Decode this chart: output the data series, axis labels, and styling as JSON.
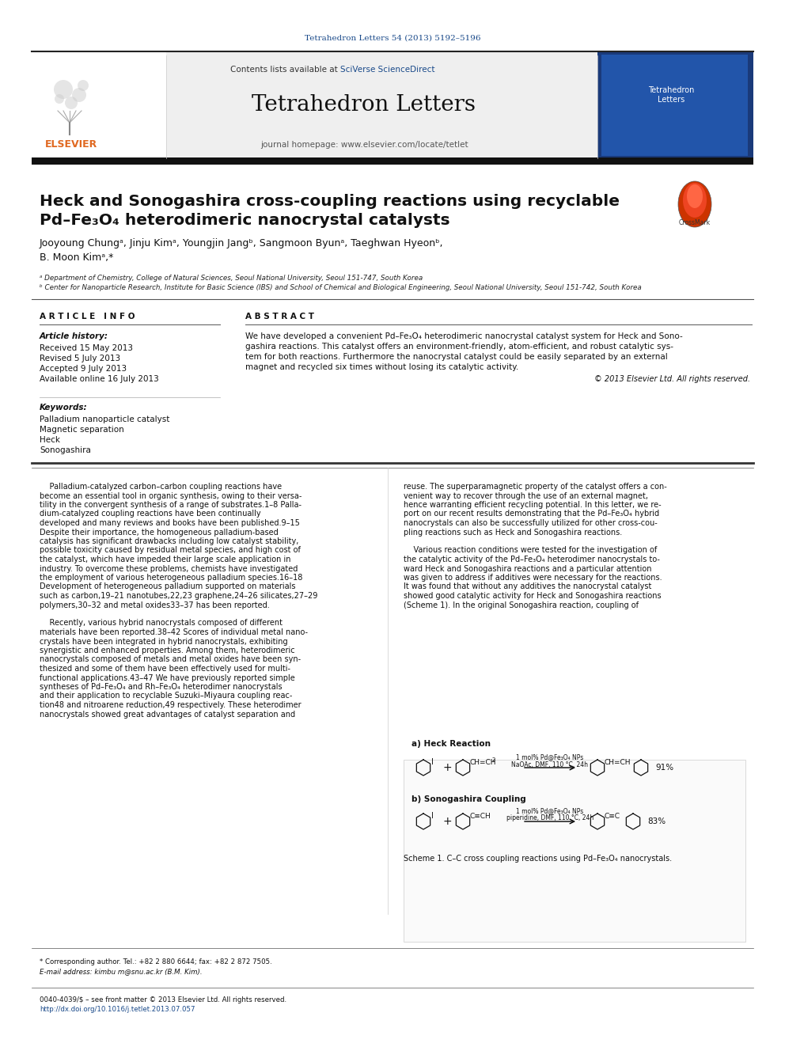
{
  "journal_citation": "Tetrahedron Letters 54 (2013) 5192–5196",
  "journal_name": "Tetrahedron Letters",
  "contents_line": "Contents lists available at ",
  "sciverse": "SciVerse ScienceDirect",
  "homepage_line": "journal homepage: www.elsevier.com/locate/tetlet",
  "title_line1": "Heck and Sonogashira cross-coupling reactions using recyclable",
  "title_line2": "Pd–Fe₃O₄ heterodimeric nanocrystal catalysts",
  "authors": "Jooyoung Chungᵃ, Jinju Kimᵃ, Youngjin Jangᵇ, Sangmoon Byunᵃ, Taeghwan Hyeonᵇ,",
  "authors2": "B. Moon Kimᵃ,*",
  "affil_a": "ᵃ Department of Chemistry, College of Natural Sciences, Seoul National University, Seoul 151-747, South Korea",
  "affil_b": "ᵇ Center for Nanoparticle Research, Institute for Basic Science (IBS) and School of Chemical and Biological Engineering, Seoul National University, Seoul 151-742, South Korea",
  "article_info_header": "A R T I C L E   I N F O",
  "abstract_header": "A B S T R A C T",
  "article_history_label": "Article history:",
  "received": "Received 15 May 2013",
  "revised": "Revised 5 July 2013",
  "accepted": "Accepted 9 July 2013",
  "available": "Available online 16 July 2013",
  "keywords_label": "Keywords:",
  "kw1": "Palladium nanoparticle catalyst",
  "kw2": "Magnetic separation",
  "kw3": "Heck",
  "kw4": "Sonogashira",
  "abstract_text": "We have developed a convenient Pd–Fe₃O₄ heterodimeric nanocrystal catalyst system for Heck and Sonogashira reactions. This catalyst offers an environment-friendly, atom-efficient, and robust catalytic system for both reactions. Furthermore the nanocrystal catalyst could be easily separated by an external magnet and recycled six times without losing its catalytic activity.",
  "copyright": "© 2013 Elsevier Ltd. All rights reserved.",
  "scheme_label_a": "a) Heck Reaction",
  "scheme_label_b": "b) Sonogashira Coupling",
  "heck_yield": "91%",
  "sono_yield": "83%",
  "scheme_caption": "Scheme 1. C–C cross coupling reactions using Pd–Fe₃O₄ nanocrystals.",
  "footnote_star": "* Corresponding author. Tel.: +82 2 880 6644; fax: +82 2 872 7505.",
  "footnote_email": "E-mail address: kimbu m@snu.ac.kr (B.M. Kim).",
  "footer_issn": "0040-4039/$ – see front matter © 2013 Elsevier Ltd. All rights reserved.",
  "footer_doi": "http://dx.doi.org/10.1016/j.tetlet.2013.07.057",
  "bg_color": "#ffffff",
  "header_bg": "#f0f0f0",
  "link_color": "#1a4a8a",
  "orange_color": "#e06820",
  "body_col1_lines": [
    "    Palladium-catalyzed carbon–carbon coupling reactions have",
    "become an essential tool in organic synthesis, owing to their versa-",
    "tility in the convergent synthesis of a range of substrates.1–8 Palla-",
    "dium-catalyzed coupling reactions have been continually",
    "developed and many reviews and books have been published.9–15",
    "Despite their importance, the homogeneous palladium-based",
    "catalysis has significant drawbacks including low catalyst stability,",
    "possible toxicity caused by residual metal species, and high cost of",
    "the catalyst, which have impeded their large scale application in",
    "industry. To overcome these problems, chemists have investigated",
    "the employment of various heterogeneous palladium species.16–18",
    "Development of heterogeneous palladium supported on materials",
    "such as carbon,19–21 nanotubes,22,23 graphene,24–26 silicates,27–29",
    "polymers,30–32 and metal oxides33–37 has been reported.",
    "",
    "    Recently, various hybrid nanocrystals composed of different",
    "materials have been reported.38–42 Scores of individual metal nano-",
    "crystals have been integrated in hybrid nanocrystals, exhibiting",
    "synergistic and enhanced properties. Among them, heterodimeric",
    "nanocrystals composed of metals and metal oxides have been syn-",
    "thesized and some of them have been effectively used for multi-",
    "functional applications.43–47 We have previously reported simple",
    "syntheses of Pd–Fe₃O₄ and Rh–Fe₃O₄ heterodimer nanocrystals",
    "and their application to recyclable Suzuki–Miyaura coupling reac-",
    "tion48 and nitroarene reduction,49 respectively. These heterodimer",
    "nanocrystals showed great advantages of catalyst separation and"
  ],
  "body_col2_lines": [
    "reuse. The superparamagnetic property of the catalyst offers a con-",
    "venient way to recover through the use of an external magnet,",
    "hence warranting efficient recycling potential. In this letter, we re-",
    "port on our recent results demonstrating that the Pd–Fe₃O₄ hybrid",
    "nanocrystals can also be successfully utilized for other cross-cou-",
    "pling reactions such as Heck and Sonogashira reactions.",
    "",
    "    Various reaction conditions were tested for the investigation of",
    "the catalytic activity of the Pd–Fe₃O₄ heterodimer nanocrystals to-",
    "ward Heck and Sonogashira reactions and a particular attention",
    "was given to address if additives were necessary for the reactions.",
    "It was found that without any additives the nanocrystal catalyst",
    "showed good catalytic activity for Heck and Sonogashira reactions",
    "(Scheme 1). In the original Sonogashira reaction, coupling of"
  ]
}
